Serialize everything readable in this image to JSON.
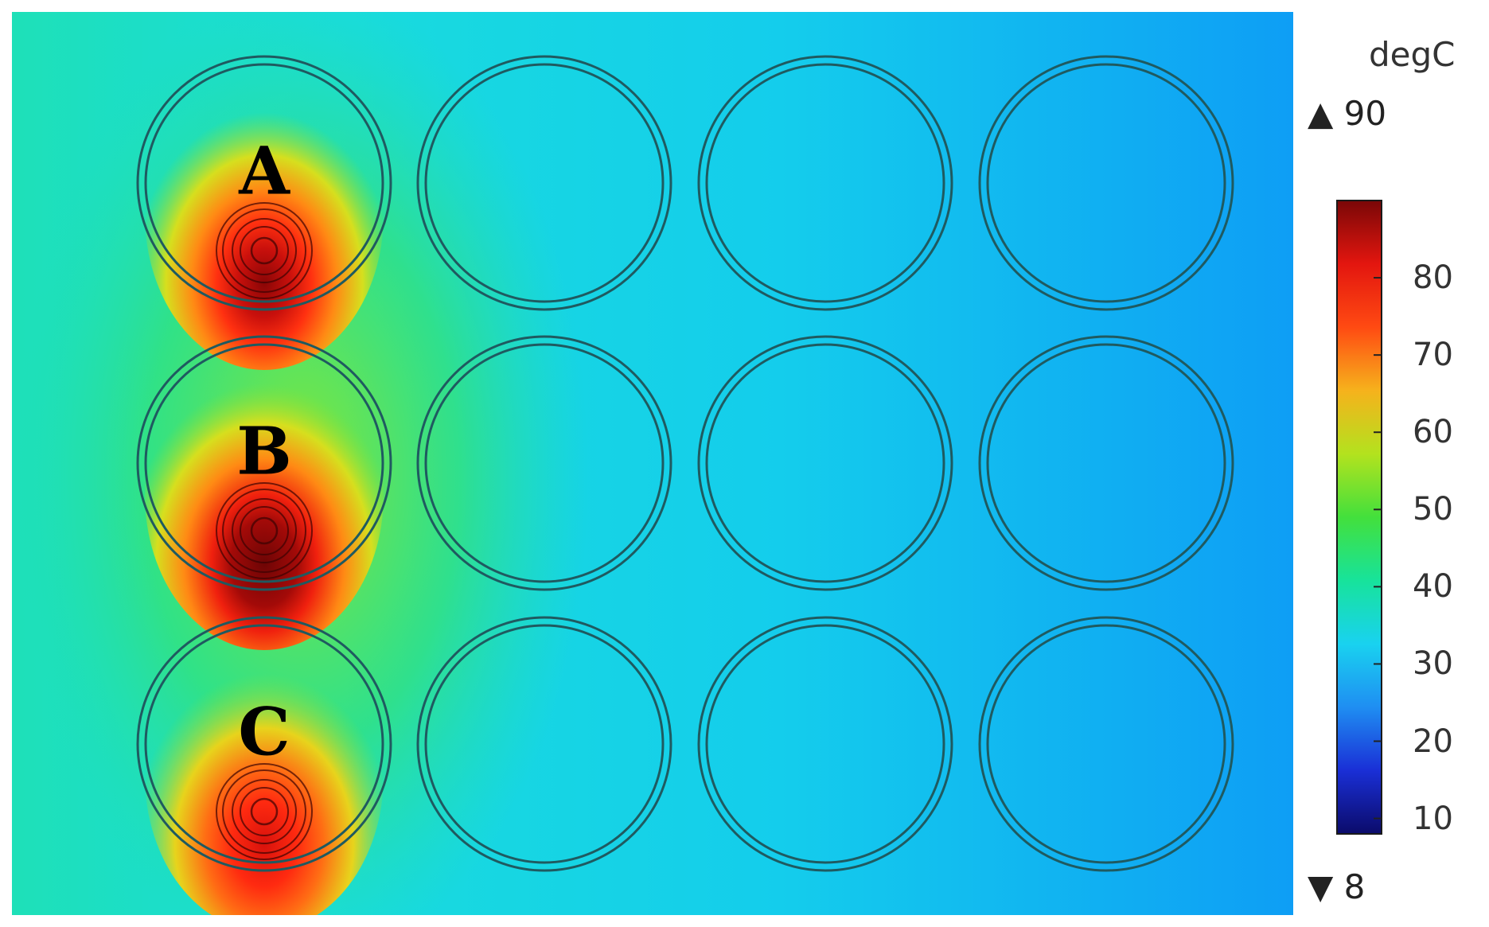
{
  "chart_data": {
    "type": "heatmap",
    "title": "",
    "colorbar": {
      "unit": "degC",
      "max_label": "90",
      "min_label": "8",
      "range": [
        8,
        90
      ],
      "ticks": [
        10,
        20,
        30,
        40,
        50,
        60,
        70,
        80
      ],
      "colormap": [
        "#0b0b6a",
        "#1a2fd6",
        "#1f8ef2",
        "#19d2f0",
        "#17e39b",
        "#43e03c",
        "#b3e21e",
        "#f6b21c",
        "#ff4a12",
        "#e3160f",
        "#7a0707"
      ],
      "max_marker": "▲",
      "min_marker": "▼"
    },
    "well_grid": {
      "rows": 3,
      "cols": 4
    },
    "heated_wells": [
      {
        "label": "A",
        "row": 1,
        "col": 1,
        "peak_temp": 88
      },
      {
        "label": "B",
        "row": 2,
        "col": 1,
        "peak_temp": 90
      },
      {
        "label": "C",
        "row": 3,
        "col": 1,
        "peak_temp": 84
      }
    ],
    "background_temp": {
      "left_edge": 45,
      "center": 38,
      "right_edge": 30
    }
  }
}
